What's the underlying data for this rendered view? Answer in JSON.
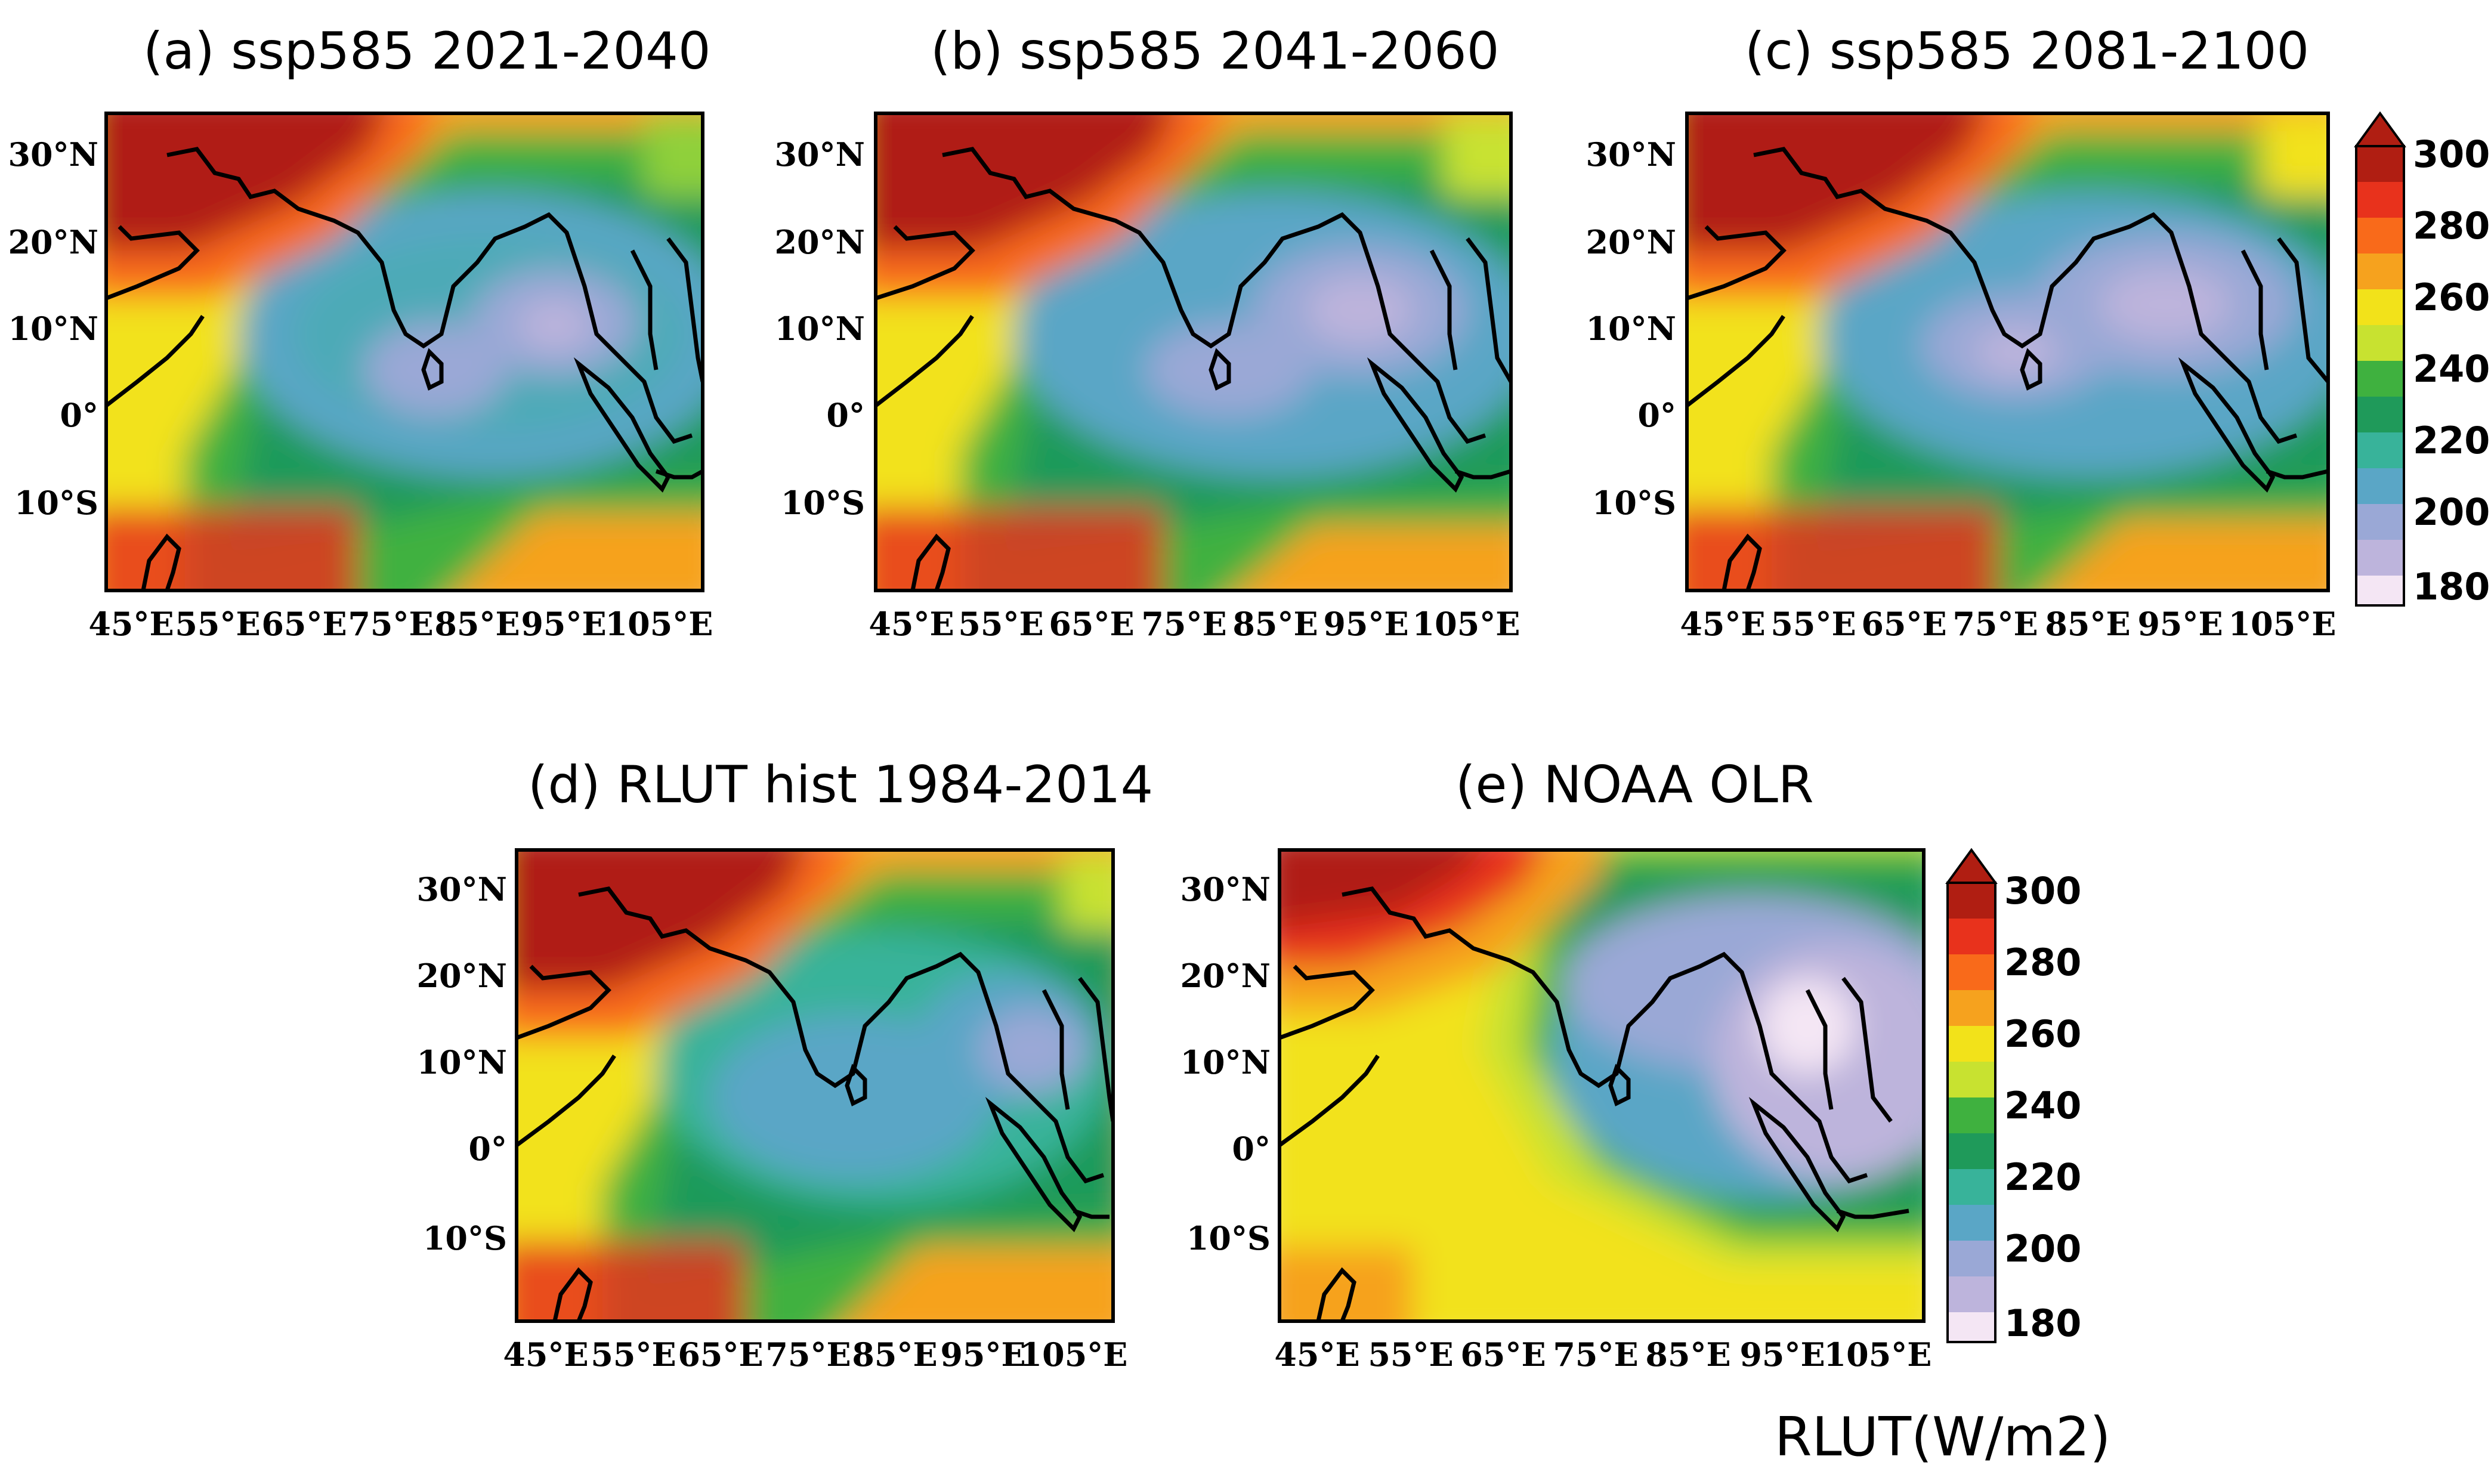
{
  "figure": {
    "units_label": "RLUT(W/m2)"
  },
  "panels": [
    {
      "id": "a",
      "title": "(a) ssp585 2021-2040"
    },
    {
      "id": "b",
      "title": "(b) ssp585 2041-2060"
    },
    {
      "id": "c",
      "title": "(c) ssp585 2081-2100"
    },
    {
      "id": "d",
      "title": "(d) RLUT hist 1984-2014"
    },
    {
      "id": "e",
      "title": "(e) NOAA OLR"
    }
  ],
  "axes": {
    "lat_ticks": [
      "30°N",
      "20°N",
      "10°N",
      "0°",
      "10°S"
    ],
    "lon_ticks": [
      "45°E",
      "55°E",
      "65°E",
      "75°E",
      "85°E",
      "95°E",
      "105°E"
    ]
  },
  "colorbar": {
    "labels": [
      "300",
      "280",
      "260",
      "240",
      "220",
      "200",
      "180"
    ],
    "colors": [
      "#b01e12",
      "#e8321c",
      "#f96a1a",
      "#f6a21e",
      "#f2e21a",
      "#c8e230",
      "#3fb13f",
      "#1f9a5a",
      "#38b39a",
      "#5aa6c6",
      "#9aa8d6",
      "#bdb4dc",
      "#f4e6f4"
    ]
  }
}
